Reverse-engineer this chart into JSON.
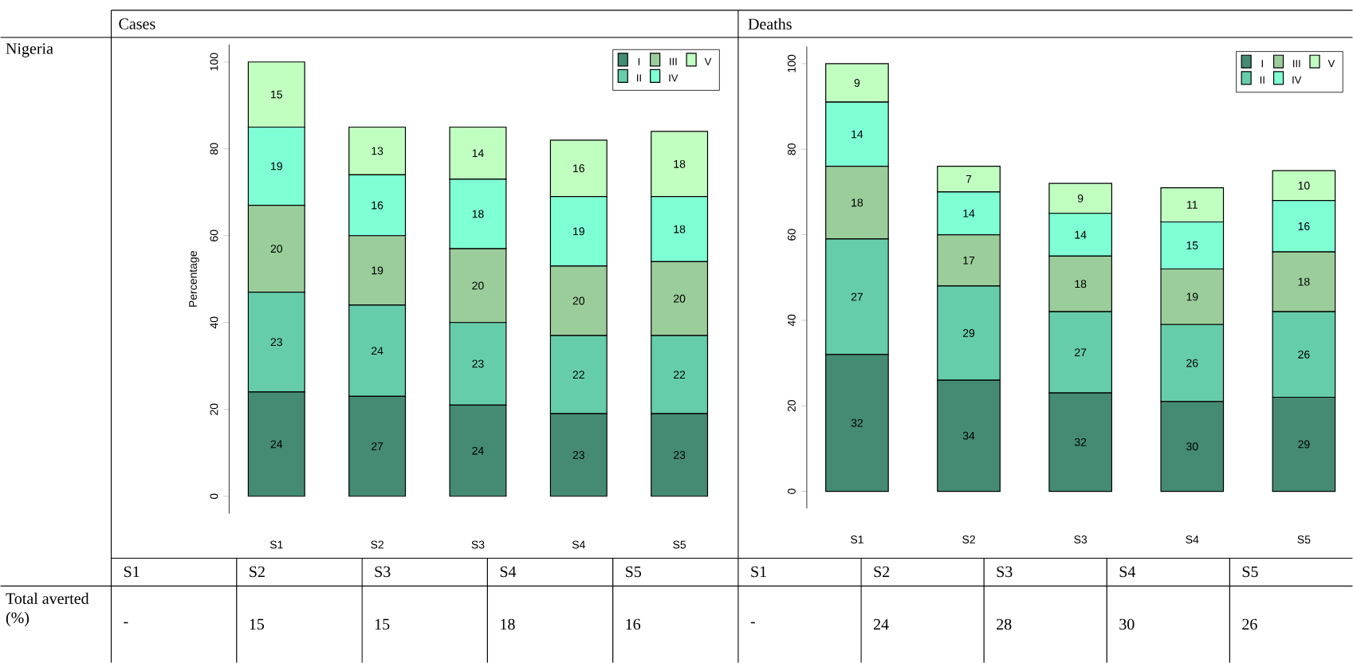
{
  "chart_data": [
    {
      "type": "bar",
      "stacked": true,
      "title": "Cases",
      "ylabel": "Percentage",
      "categories": [
        "S1",
        "S2",
        "S3",
        "S4",
        "S5"
      ],
      "ylim": [
        -4,
        104
      ],
      "yticks": [
        0,
        20,
        40,
        60,
        80,
        100
      ],
      "legend": "top right",
      "annotations": [
        "Nigeria",
        "Total averted (%)",
        "S1",
        "S2",
        "S3",
        "S4",
        "S5",
        "-",
        "15",
        "15",
        "18",
        "16",
        "24",
        "27",
        "24",
        "23",
        "23",
        "23",
        "24",
        "23",
        "22",
        "22",
        "20",
        "19",
        "20",
        "20",
        "20",
        "19",
        "16",
        "18",
        "19",
        "18",
        "15",
        "13",
        "14",
        "16",
        "18"
      ],
      "series": [
        {
          "name": "I",
          "color": "#458b74",
          "values": [
            24,
            23,
            21,
            19,
            19
          ]
        },
        {
          "name": "II",
          "color": "#66cdaa",
          "values": [
            23,
            21,
            19,
            18,
            18
          ]
        },
        {
          "name": "III",
          "color": "#9bcd9b",
          "values": [
            20,
            16,
            17,
            16,
            17
          ]
        },
        {
          "name": "IV",
          "color": "#7fffd4",
          "values": [
            18,
            14,
            16,
            16,
            15
          ]
        },
        {
          "name": "V",
          "color": "#c1ffc1",
          "values": [
            15,
            11,
            12,
            13,
            15
          ]
        }
      ]
    },
    {
      "type": "bar",
      "stacked": true,
      "title": "Deaths",
      "categories": [
        "S1",
        "S2",
        "S3",
        "S4",
        "S5"
      ],
      "ylim": [
        -4,
        104
      ],
      "yticks": [
        0,
        20,
        40,
        60,
        80,
        100
      ],
      "legend": "top right",
      "annotations": [
        "S1",
        "S2",
        "S3",
        "S4",
        "S5",
        "-",
        "24",
        "28",
        "30",
        "26",
        "32",
        "34",
        "32",
        "30",
        "29",
        "27",
        "29",
        "27",
        "26",
        "26",
        "18",
        "17",
        "18",
        "19",
        "18",
        "14",
        "14",
        "14",
        "15",
        "16",
        "9",
        "7",
        "9",
        "11",
        "10"
      ],
      "series": [
        {
          "name": "I",
          "color": "#458b74",
          "values": [
            32,
            26,
            23,
            21,
            22
          ]
        },
        {
          "name": "II",
          "color": "#66cdaa",
          "values": [
            27,
            22,
            19,
            18,
            20
          ]
        },
        {
          "name": "III",
          "color": "#9bcd9b",
          "values": [
            17,
            12,
            13,
            13,
            14
          ]
        },
        {
          "name": "IV",
          "color": "#7fffd4",
          "values": [
            15,
            10,
            10,
            11,
            12
          ]
        },
        {
          "name": "V",
          "color": "#c1ffc1",
          "values": [
            9,
            6,
            7,
            8,
            7
          ]
        }
      ]
    }
  ]
}
